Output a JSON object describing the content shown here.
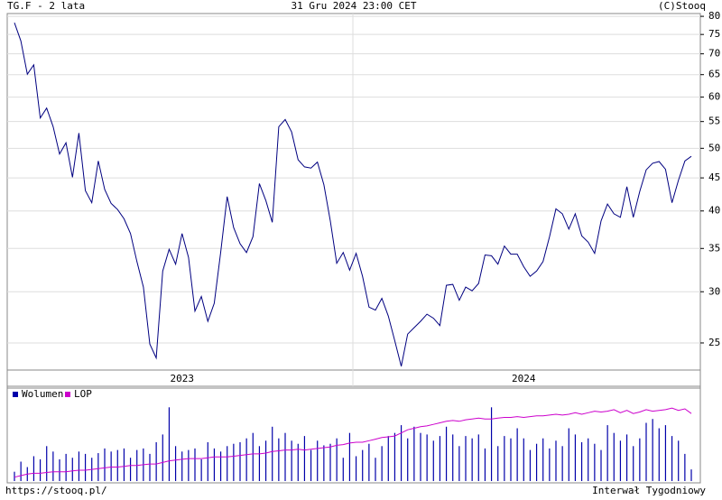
{
  "chart_data": {
    "type": "line",
    "title": "TG.F - 2 lata",
    "subtitle": "31 Gru 2024 23:00 CET",
    "credit": "(C)Stooq",
    "footer_left": "https://stooq.pl/",
    "footer_right": "Interwał Tygodniowy",
    "log_scale": true,
    "grid": true,
    "ylim": [
      22.7,
      80.8
    ],
    "yticks": [
      25,
      30,
      35,
      40,
      45,
      50,
      55,
      60,
      65,
      70,
      75,
      80
    ],
    "vlim": [
      0,
      100
    ],
    "categories": [
      null,
      null,
      null,
      null,
      null,
      null,
      null,
      null,
      null,
      null,
      null,
      null,
      null,
      null,
      null,
      null,
      null,
      null,
      null,
      null,
      null,
      null,
      null,
      null,
      null,
      null,
      "2023",
      null,
      null,
      null,
      null,
      null,
      null,
      null,
      null,
      null,
      null,
      null,
      null,
      null,
      null,
      null,
      null,
      null,
      null,
      null,
      null,
      null,
      null,
      null,
      null,
      null,
      null,
      null,
      null,
      null,
      null,
      null,
      null,
      null,
      null,
      null,
      null,
      null,
      null,
      null,
      null,
      null,
      null,
      null,
      null,
      null,
      null,
      null,
      null,
      null,
      null,
      null,
      null,
      "2024",
      null,
      null,
      null,
      null,
      null,
      null,
      null,
      null,
      null,
      null,
      null,
      null,
      null,
      null,
      null,
      null,
      null,
      null,
      null,
      null,
      null,
      null,
      null,
      null,
      null,
      null
    ],
    "series": [
      {
        "name": "TG.F",
        "color": "#000080",
        "values": [
          78.2,
          73.3,
          65.1,
          67.3,
          55.7,
          57.7,
          54.0,
          49.0,
          51.0,
          45.1,
          52.8,
          43.0,
          41.2,
          47.8,
          43.2,
          41.1,
          40.2,
          38.9,
          36.9,
          33.4,
          30.5,
          24.9,
          23.7,
          32.3,
          34.9,
          33.1,
          36.9,
          33.9,
          28.0,
          29.5,
          27.0,
          28.8,
          34.6,
          42.1,
          37.7,
          35.6,
          34.5,
          36.5,
          44.1,
          41.5,
          38.4,
          54.0,
          55.4,
          53.0,
          48.0,
          46.8,
          46.6,
          47.6,
          43.9,
          38.6,
          33.2,
          34.5,
          32.4,
          34.4,
          31.7,
          28.4,
          28.1,
          29.3,
          27.5,
          25.2,
          23.0,
          25.8,
          26.4,
          27.0,
          27.7,
          27.3,
          26.6,
          30.7,
          30.8,
          29.1,
          30.5,
          30.1,
          30.9,
          34.2,
          34.1,
          33.1,
          35.3,
          34.3,
          34.3,
          32.8,
          31.7,
          32.3,
          33.4,
          36.5,
          40.3,
          39.6,
          37.5,
          39.6,
          36.6,
          35.8,
          34.4,
          38.6,
          41.0,
          39.6,
          39.1,
          43.6,
          39.1,
          42.9,
          46.3,
          47.4,
          47.7,
          46.4,
          41.2,
          44.6,
          47.8,
          48.6
        ]
      },
      {
        "name": "Wolumen",
        "color": "#0000aa",
        "axis": "v",
        "values": [
          12,
          25,
          18,
          32,
          28,
          45,
          38,
          28,
          35,
          30,
          38,
          35,
          30,
          36,
          42,
          38,
          40,
          42,
          30,
          40,
          42,
          35,
          50,
          60,
          95,
          45,
          38,
          40,
          42,
          28,
          50,
          42,
          38,
          45,
          48,
          50,
          55,
          62,
          45,
          52,
          70,
          55,
          62,
          52,
          48,
          58,
          40,
          52,
          46,
          48,
          55,
          30,
          62,
          32,
          40,
          48,
          30,
          45,
          58,
          62,
          72,
          55,
          70,
          62,
          60,
          52,
          58,
          70,
          60,
          45,
          58,
          55,
          60,
          42,
          95,
          45,
          58,
          55,
          68,
          55,
          40,
          48,
          55,
          42,
          52,
          45,
          68,
          60,
          50,
          55,
          48,
          40,
          72,
          62,
          52,
          60,
          45,
          55,
          75,
          80,
          68,
          72,
          58,
          52,
          35,
          15
        ]
      },
      {
        "name": "LOP",
        "color": "#cc00cc",
        "axis": "v",
        "values": [
          5,
          7,
          9,
          10,
          10,
          11,
          12,
          12,
          12,
          13,
          14,
          14,
          15,
          16,
          17,
          18,
          18,
          19,
          20,
          20,
          21,
          22,
          22,
          24,
          26,
          27,
          28,
          29,
          29,
          29,
          30,
          31,
          31,
          31,
          32,
          33,
          34,
          35,
          35,
          36,
          38,
          39,
          40,
          40,
          41,
          40,
          41,
          42,
          43,
          44,
          46,
          47,
          49,
          50,
          50,
          52,
          54,
          56,
          57,
          58,
          62,
          66,
          68,
          70,
          71,
          73,
          75,
          77,
          78,
          77,
          79,
          80,
          81,
          80,
          80,
          81,
          82,
          82,
          83,
          82,
          83,
          84,
          84,
          85,
          86,
          85,
          86,
          88,
          86,
          88,
          90,
          89,
          90,
          92,
          88,
          91,
          87,
          89,
          92,
          90,
          91,
          92,
          94,
          91,
          93,
          87
        ]
      }
    ]
  }
}
